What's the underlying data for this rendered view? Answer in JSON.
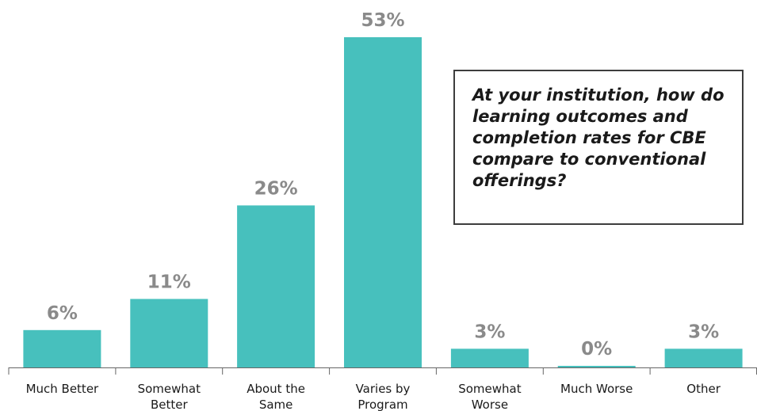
{
  "chart_data": {
    "type": "bar",
    "categories": [
      [
        "Much Better"
      ],
      [
        "Somewhat",
        "Better"
      ],
      [
        "About the",
        "Same"
      ],
      [
        "Varies by",
        "Program"
      ],
      [
        "Somewhat",
        "Worse"
      ],
      [
        "Much Worse"
      ],
      [
        "Other"
      ]
    ],
    "values": [
      6,
      11,
      26,
      53,
      3,
      0,
      3
    ],
    "value_labels": [
      "6%",
      "11%",
      "26%",
      "53%",
      "3%",
      "0%",
      "3%"
    ],
    "ylim": [
      0,
      53
    ],
    "title": "",
    "xlabel": "",
    "ylabel": "",
    "grid": false,
    "bar_color": "#47c0bd",
    "axis_color": "#666666",
    "value_label_color": "#8a8a8a"
  },
  "callout": {
    "text": "At your institution, how do learning outcomes and completion rates for CBE compare to conventional offerings?"
  }
}
